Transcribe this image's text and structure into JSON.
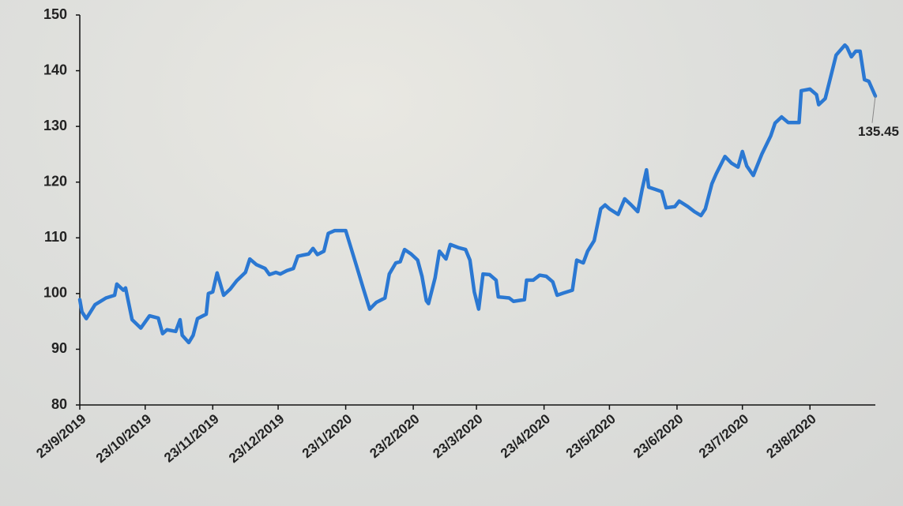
{
  "chart_data": {
    "type": "line",
    "x": [
      "2019-09-23",
      "2019-09-24",
      "2019-09-26",
      "2019-09-30",
      "2019-10-05",
      "2019-10-09",
      "2019-10-10",
      "2019-10-13",
      "2019-10-14",
      "2019-10-17",
      "2019-10-21",
      "2019-10-23",
      "2019-10-25",
      "2019-10-29",
      "2019-10-31",
      "2019-11-02",
      "2019-11-06",
      "2019-11-08",
      "2019-11-09",
      "2019-11-12",
      "2019-11-14",
      "2019-11-16",
      "2019-11-20",
      "2019-11-21",
      "2019-11-23",
      "2019-11-25",
      "2019-11-28",
      "2019-12-01",
      "2019-12-04",
      "2019-12-08",
      "2019-12-10",
      "2019-12-13",
      "2019-12-17",
      "2019-12-19",
      "2019-12-22",
      "2019-12-24",
      "2019-12-27",
      "2019-12-30",
      "2020-01-01",
      "2020-01-06",
      "2020-01-08",
      "2020-01-10",
      "2020-01-13",
      "2020-01-15",
      "2020-01-18",
      "2020-01-23",
      "2020-01-28",
      "2020-01-31",
      "2020-02-03",
      "2020-02-06",
      "2020-02-10",
      "2020-02-12",
      "2020-02-15",
      "2020-02-17",
      "2020-02-19",
      "2020-02-22",
      "2020-02-25",
      "2020-02-27",
      "2020-02-29",
      "2020-03-01",
      "2020-03-04",
      "2020-03-06",
      "2020-03-09",
      "2020-03-11",
      "2020-03-15",
      "2020-03-18",
      "2020-03-20",
      "2020-03-22",
      "2020-03-24",
      "2020-03-26",
      "2020-03-29",
      "2020-04-01",
      "2020-04-02",
      "2020-04-07",
      "2020-04-09",
      "2020-04-14",
      "2020-04-15",
      "2020-04-18",
      "2020-04-21",
      "2020-04-24",
      "2020-04-27",
      "2020-04-29",
      "2020-05-02",
      "2020-05-06",
      "2020-05-08",
      "2020-05-11",
      "2020-05-13",
      "2020-05-16",
      "2020-05-19",
      "2020-05-21",
      "2020-05-23",
      "2020-05-27",
      "2020-05-30",
      "2020-06-02",
      "2020-06-05",
      "2020-06-07",
      "2020-06-09",
      "2020-06-10",
      "2020-06-13",
      "2020-06-16",
      "2020-06-18",
      "2020-06-22",
      "2020-06-24",
      "2020-06-28",
      "2020-07-01",
      "2020-07-04",
      "2020-07-06",
      "2020-07-09",
      "2020-07-11",
      "2020-07-15",
      "2020-07-18",
      "2020-07-21",
      "2020-07-23",
      "2020-07-25",
      "2020-07-28",
      "2020-08-01",
      "2020-08-05",
      "2020-08-07",
      "2020-08-10",
      "2020-08-13",
      "2020-08-18",
      "2020-08-19",
      "2020-08-23",
      "2020-08-26",
      "2020-08-27",
      "2020-08-30",
      "2020-09-01",
      "2020-09-04",
      "2020-09-08",
      "2020-09-09",
      "2020-09-11",
      "2020-09-13",
      "2020-09-15",
      "2020-09-17",
      "2020-09-19",
      "2020-09-22"
    ],
    "series": [
      {
        "color": "#2b78d2",
        "values": [
          98.9,
          96.7,
          95.5,
          98,
          99.2,
          99.7,
          101.7,
          100.6,
          101,
          95.3,
          93.8,
          94.9,
          96,
          95.6,
          92.8,
          93.5,
          93.2,
          95.3,
          92.5,
          91.2,
          92.5,
          95.5,
          96.3,
          100,
          100.3,
          103.7,
          99.7,
          100.8,
          102.3,
          103.8,
          106.2,
          105.2,
          104.5,
          103.4,
          103.8,
          103.5,
          104.1,
          104.5,
          106.7,
          107.1,
          108.1,
          107,
          107.6,
          110.8,
          111.3,
          111.3,
          104.9,
          101,
          97.2,
          98.4,
          99.2,
          103.5,
          105.5,
          105.7,
          107.9,
          107.1,
          106,
          103.1,
          98.7,
          98.2,
          102.8,
          107.6,
          106.2,
          108.8,
          108.2,
          107.9,
          106,
          100.3,
          97.2,
          103.5,
          103.4,
          102.4,
          99.4,
          99.2,
          98.6,
          98.9,
          102.4,
          102.4,
          103.3,
          103.1,
          102.1,
          99.7,
          100.1,
          100.6,
          106,
          105.5,
          107.6,
          109.5,
          115.2,
          115.9,
          115.2,
          114.2,
          117,
          115.9,
          114.7,
          118.7,
          122.2,
          119.1,
          118.7,
          118.3,
          115.4,
          115.6,
          116.6,
          115.6,
          114.7,
          114,
          115.2,
          119.7,
          121.5,
          124.6,
          123.4,
          122.7,
          125.5,
          122.9,
          121.2,
          125.1,
          128.3,
          130.6,
          131.7,
          130.7,
          130.7,
          136.4,
          136.7,
          135.7,
          133.9,
          135,
          138.1,
          142.8,
          144.6,
          144.2,
          142.5,
          143.5,
          143.5,
          138.4,
          138.1,
          135.45
        ]
      }
    ],
    "annotations": [
      {
        "text": "135.45",
        "x": "2020-09-22",
        "y": 135.45
      }
    ],
    "xlim": [
      "2019-09-23",
      "2020-09-22"
    ],
    "xticks": [
      {
        "value": "2019-09-23",
        "label": "23/9/2019"
      },
      {
        "value": "2019-10-23",
        "label": "23/10/2019"
      },
      {
        "value": "2019-11-23",
        "label": "23/11/2019"
      },
      {
        "value": "2019-12-23",
        "label": "23/12/2019"
      },
      {
        "value": "2020-01-23",
        "label": "23/1/2020"
      },
      {
        "value": "2020-02-23",
        "label": "23/2/2020"
      },
      {
        "value": "2020-03-23",
        "label": "23/3/2020"
      },
      {
        "value": "2020-04-23",
        "label": "23/4/2020"
      },
      {
        "value": "2020-05-23",
        "label": "23/5/2020"
      },
      {
        "value": "2020-06-23",
        "label": "23/6/2020"
      },
      {
        "value": "2020-07-23",
        "label": "23/7/2020"
      },
      {
        "value": "2020-08-23",
        "label": "23/8/2020"
      }
    ],
    "ylim": [
      80,
      150
    ],
    "yticks": [
      80,
      90,
      100,
      110,
      120,
      130,
      140,
      150
    ],
    "grid": false
  }
}
